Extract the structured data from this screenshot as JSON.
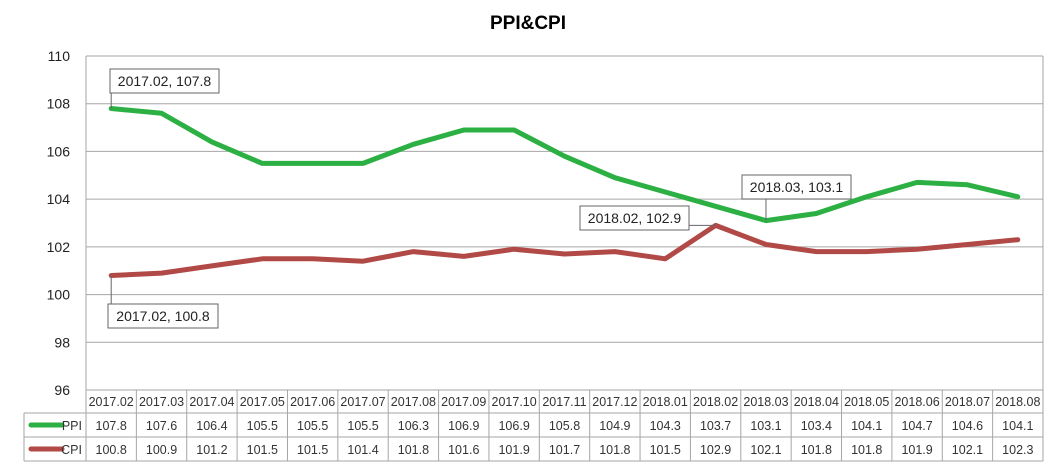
{
  "chart_data": {
    "type": "line",
    "title": "PPI&CPI",
    "categories": [
      "2017.02",
      "2017.03",
      "2017.04",
      "2017.05",
      "2017.06",
      "2017.07",
      "2017.08",
      "2017.09",
      "2017.10",
      "2017.11",
      "2017.12",
      "2018.01",
      "2018.02",
      "2018.03",
      "2018.04",
      "2018.05",
      "2018.06",
      "2018.07",
      "2018.08"
    ],
    "series": [
      {
        "name": "PPI",
        "color": "#2cb043",
        "values": [
          107.8,
          107.6,
          106.4,
          105.5,
          105.5,
          105.5,
          106.3,
          106.9,
          106.9,
          105.8,
          104.9,
          104.3,
          103.7,
          103.1,
          103.4,
          104.1,
          104.7,
          104.6,
          104.1
        ],
        "display": [
          "107.8",
          "107.6",
          "106.4",
          "105.5",
          "105.5",
          "105.5",
          "106.3",
          "106.9",
          "106.9",
          "105.8",
          "104.9",
          "104.3",
          "103.7",
          "103.1",
          "103.4",
          "104.1",
          "104.7",
          "104.6",
          "104.1"
        ]
      },
      {
        "name": "CPI",
        "color": "#b14a47",
        "values": [
          100.8,
          100.9,
          101.2,
          101.5,
          101.5,
          101.4,
          101.8,
          101.6,
          101.9,
          101.7,
          101.8,
          101.5,
          102.9,
          102.1,
          101.8,
          101.8,
          101.9,
          102.1,
          102.3
        ],
        "display": [
          "100.8",
          "100.9",
          "101.2",
          "101.5",
          "101.5",
          "101.4",
          "101.8",
          "101.6",
          "101.9",
          "101.7",
          "101.8",
          "101.5",
          "102.9",
          "102.1",
          "101.8",
          "101.8",
          "101.9",
          "102.1",
          "102.3"
        ]
      }
    ],
    "ylim": [
      96,
      110
    ],
    "yticks": [
      "96",
      "98",
      "100",
      "102",
      "104",
      "106",
      "108",
      "110"
    ],
    "grid": true,
    "legend": "data-table",
    "annotations": [
      {
        "text": "2017.02, 107.8",
        "series": 0,
        "index": 0
      },
      {
        "text": "2017.02, 100.8",
        "series": 1,
        "index": 0
      },
      {
        "text": "2018.02, 102.9",
        "series": 1,
        "index": 12
      },
      {
        "text": "2018.03, 103.1",
        "series": 0,
        "index": 13
      }
    ]
  }
}
